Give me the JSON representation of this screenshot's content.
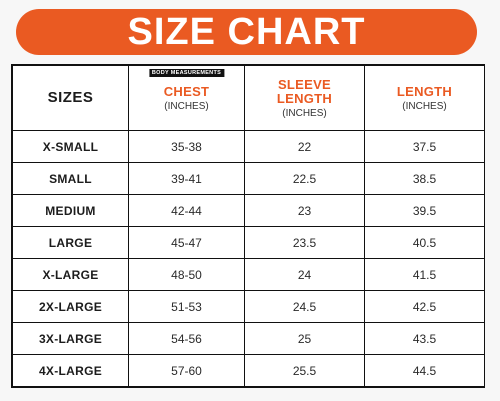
{
  "colors": {
    "accent": "#ea5a22",
    "text": "#1c1c1c",
    "border": "#111111"
  },
  "banner": {
    "title": "SIZE CHART"
  },
  "table": {
    "tag": "BODY MEASUREMENTS",
    "headers": {
      "sizes": "SIZES",
      "chest": {
        "line1": "CHEST",
        "line2": "",
        "unit": "(INCHES)"
      },
      "sleeve": {
        "line1": "SLEEVE",
        "line2": "LENGTH",
        "unit": "(INCHES)"
      },
      "length": {
        "line1": "LENGTH",
        "line2": "",
        "unit": "(INCHES)"
      }
    },
    "rows": [
      {
        "size": "X-SMALL",
        "chest": "35-38",
        "sleeve": "22",
        "length": "37.5"
      },
      {
        "size": "SMALL",
        "chest": "39-41",
        "sleeve": "22.5",
        "length": "38.5"
      },
      {
        "size": "MEDIUM",
        "chest": "42-44",
        "sleeve": "23",
        "length": "39.5"
      },
      {
        "size": "LARGE",
        "chest": "45-47",
        "sleeve": "23.5",
        "length": "40.5"
      },
      {
        "size": "X-LARGE",
        "chest": "48-50",
        "sleeve": "24",
        "length": "41.5"
      },
      {
        "size": "2X-LARGE",
        "chest": "51-53",
        "sleeve": "24.5",
        "length": "42.5"
      },
      {
        "size": "3X-LARGE",
        "chest": "54-56",
        "sleeve": "25",
        "length": "43.5"
      },
      {
        "size": "4X-LARGE",
        "chest": "57-60",
        "sleeve": "25.5",
        "length": "44.5"
      }
    ]
  }
}
